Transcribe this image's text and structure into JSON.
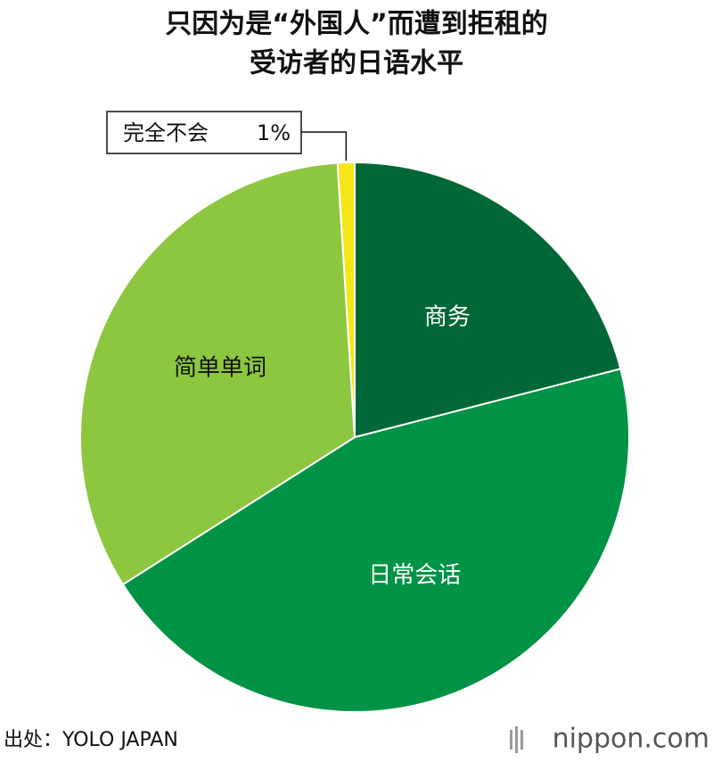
{
  "chart_data": {
    "type": "pie",
    "title": [
      "只因为是“外国人”而遭到拒租的",
      "受访者的日语水平"
    ],
    "categories": [
      "商务",
      "日常会话",
      "简单单词",
      "完全不会"
    ],
    "values": [
      21,
      45,
      33,
      1
    ],
    "value_labels": [
      null,
      null,
      null,
      "1%"
    ],
    "colors": [
      "#006837",
      "#009245",
      "#8dc63f",
      "#f5e61a"
    ],
    "source": "出处：YOLO JAPAN",
    "logo": "nippon.com"
  }
}
